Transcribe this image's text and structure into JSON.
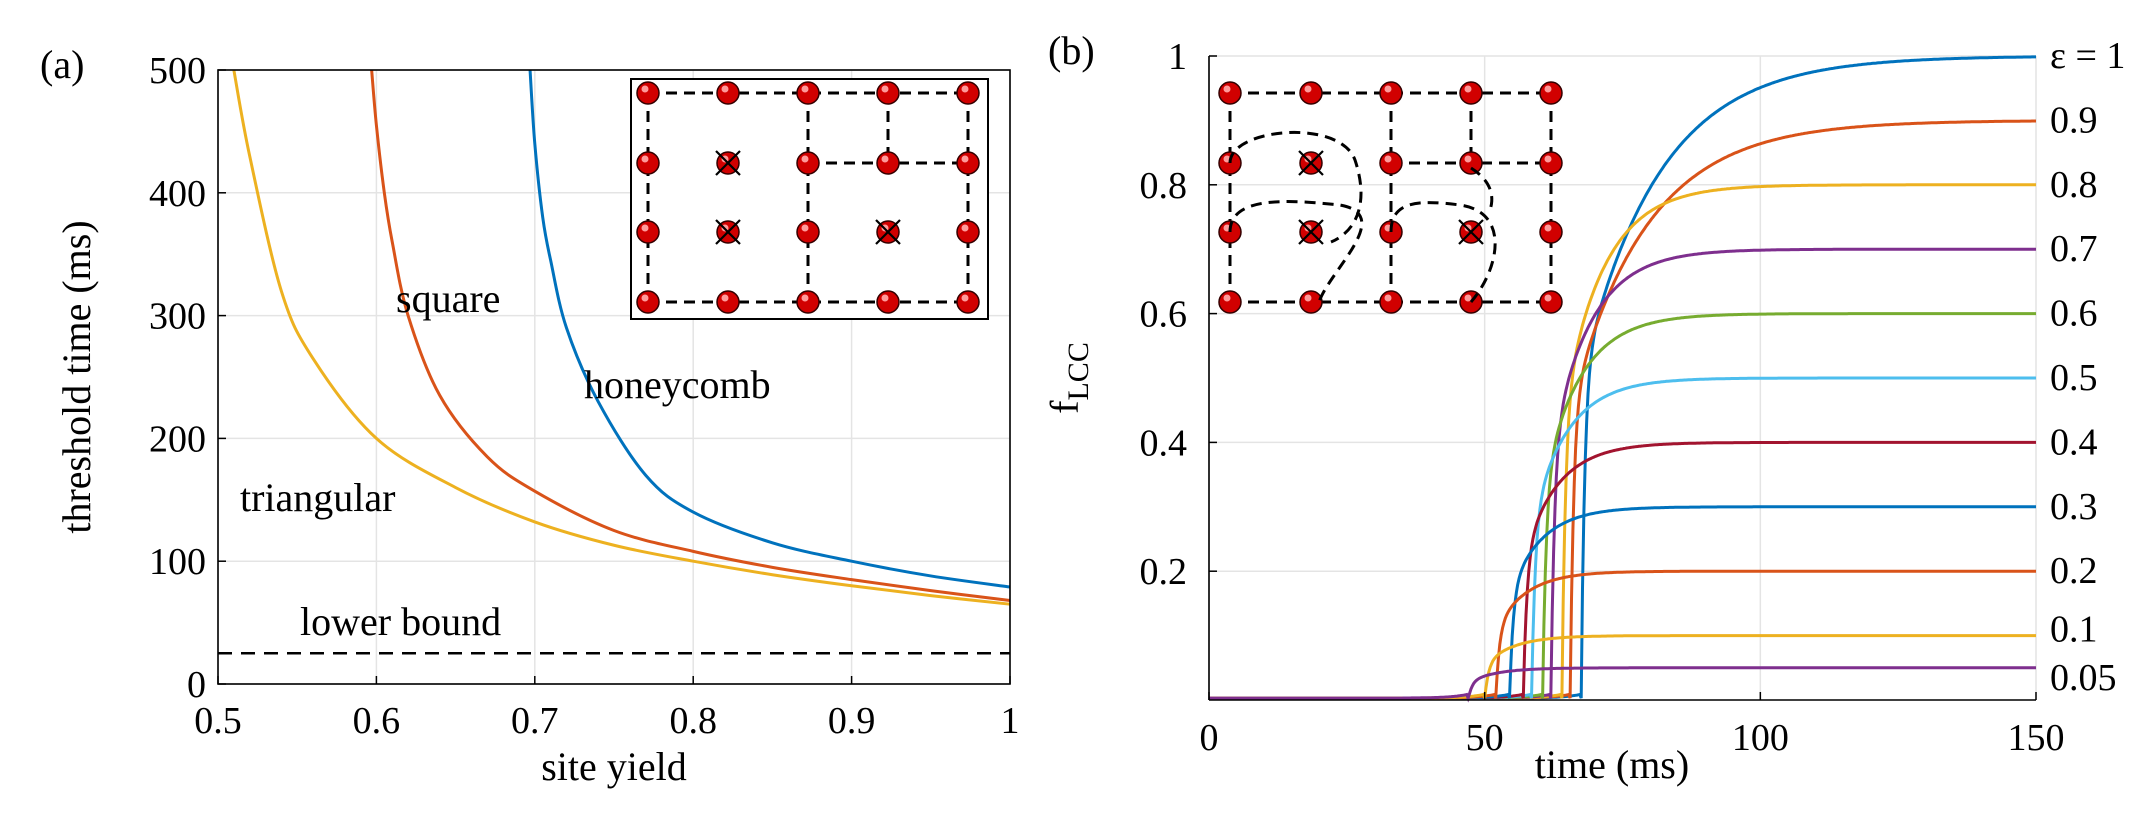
{
  "chart_data": [
    {
      "type": "line",
      "panel_label": "(a)",
      "xlabel": "site yield",
      "ylabel": "threshold time (ms)",
      "xlim": [
        0.5,
        1
      ],
      "ylim": [
        0,
        500
      ],
      "x_ticks": [
        "0.5",
        "0.6",
        "0.7",
        "0.8",
        "0.9",
        "1"
      ],
      "y_ticks": [
        "0",
        "100",
        "200",
        "300",
        "400",
        "500"
      ],
      "grid": true,
      "series": [
        {
          "name": "triangular",
          "color": "#EDB120",
          "x": [
            0.51,
            0.52,
            0.54,
            0.56,
            0.6,
            0.65,
            0.7,
            0.75,
            0.8,
            0.85,
            0.9,
            0.95,
            1.0
          ],
          "y": [
            500,
            430,
            320,
            265,
            200,
            160,
            132,
            113,
            100,
            89,
            80,
            72,
            65
          ]
        },
        {
          "name": "square",
          "color": "#D95319",
          "x": [
            0.597,
            0.6,
            0.605,
            0.61,
            0.62,
            0.64,
            0.67,
            0.7,
            0.75,
            0.8,
            0.85,
            0.9,
            0.95,
            1.0
          ],
          "y": [
            500,
            455,
            400,
            360,
            300,
            235,
            185,
            157,
            125,
            108,
            95,
            85,
            76,
            68
          ]
        },
        {
          "name": "honeycomb",
          "color": "#0072BD",
          "x": [
            0.697,
            0.7,
            0.705,
            0.71,
            0.72,
            0.74,
            0.77,
            0.8,
            0.85,
            0.9,
            0.95,
            1.0
          ],
          "y": [
            500,
            440,
            380,
            345,
            290,
            230,
            170,
            140,
            115,
            100,
            88,
            79
          ]
        }
      ],
      "reference_lines": [
        {
          "name": "lower bound",
          "y": 25,
          "style": "dashed"
        }
      ],
      "inset": "square lattice with cross-marked removed sites"
    },
    {
      "type": "line",
      "panel_label": "(b)",
      "xlabel": "time (ms)",
      "ylabel_main": "f",
      "ylabel_sub": "LCC",
      "xlim": [
        0,
        150
      ],
      "ylim": [
        0,
        1
      ],
      "x_ticks": [
        "0",
        "50",
        "100",
        "150"
      ],
      "y_ticks": [
        "0.2",
        "0.4",
        "0.6",
        "0.8",
        "1"
      ],
      "grid": true,
      "series": [
        {
          "label": "ε = 1",
          "epsilon": 1,
          "t_on": 67.5,
          "color": "#0072BD"
        },
        {
          "label": "0.9",
          "epsilon": 0.9,
          "t_on": 65.5,
          "color": "#D95319"
        },
        {
          "label": "0.8",
          "epsilon": 0.8,
          "t_on": 64,
          "color": "#EDB120"
        },
        {
          "label": "0.7",
          "epsilon": 0.7,
          "t_on": 62,
          "color": "#7E2F8E"
        },
        {
          "label": "0.6",
          "epsilon": 0.6,
          "t_on": 60.5,
          "color": "#77AC30"
        },
        {
          "label": "0.5",
          "epsilon": 0.5,
          "t_on": 58.5,
          "color": "#4DBEEE"
        },
        {
          "label": "0.4",
          "epsilon": 0.4,
          "t_on": 57,
          "color": "#A2142F"
        },
        {
          "label": "0.3",
          "epsilon": 0.3,
          "t_on": 54.5,
          "color": "#0072BD"
        },
        {
          "label": "0.2",
          "epsilon": 0.2,
          "t_on": 52,
          "color": "#D95319"
        },
        {
          "label": "0.1",
          "epsilon": 0.1,
          "t_on": 50,
          "color": "#EDB120"
        },
        {
          "label": "0.05",
          "epsilon": 0.05,
          "t_on": 47,
          "color": "#7E2F8E"
        }
      ],
      "inset": "square lattice with dashed loops around cross-marked removed sites"
    }
  ]
}
